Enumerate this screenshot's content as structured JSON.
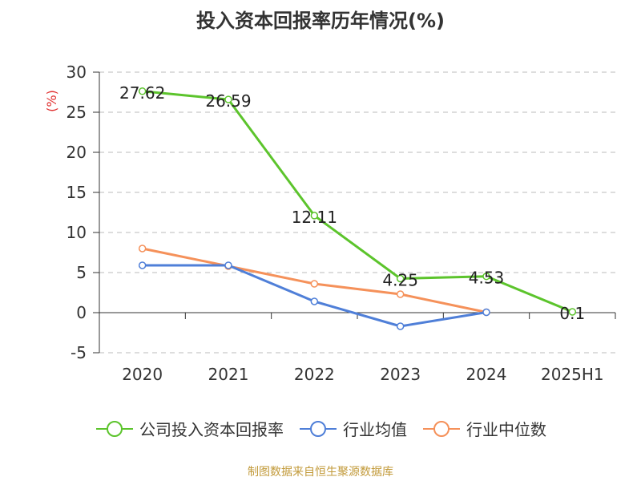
{
  "title": "投入资本回报率历年情况(%)",
  "source": "制图数据来自恒生聚源数据库",
  "chart_data": {
    "type": "line",
    "categories": [
      "2020",
      "2021",
      "2022",
      "2023",
      "2024",
      "2025H1"
    ],
    "ylabel": "(%)",
    "ylim": [
      -5,
      30
    ],
    "yticks": [
      -5,
      0,
      5,
      10,
      15,
      20,
      25,
      30
    ],
    "grid": true,
    "legend_position": "bottom",
    "series": [
      {
        "name": "公司投入资本回报率",
        "color": "#5cc42c",
        "values": [
          27.62,
          26.59,
          12.11,
          4.25,
          4.53,
          0.1
        ],
        "show_labels": true
      },
      {
        "name": "行业均值",
        "color": "#4f7fd8",
        "values": [
          5.9,
          5.9,
          1.4,
          -1.7,
          0.05,
          null
        ],
        "show_labels": false
      },
      {
        "name": "行业中位数",
        "color": "#f5915a",
        "values": [
          8.0,
          5.8,
          3.6,
          2.3,
          0.05,
          null
        ],
        "show_labels": false
      }
    ]
  }
}
